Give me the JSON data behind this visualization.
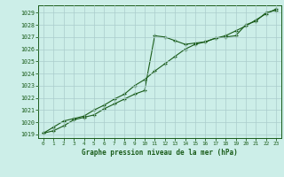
{
  "title": "Graphe pression niveau de la mer (hPa)",
  "xlim": [
    -0.5,
    23.5
  ],
  "ylim": [
    1018.7,
    1029.6
  ],
  "xticks": [
    0,
    1,
    2,
    3,
    4,
    5,
    6,
    7,
    8,
    9,
    10,
    11,
    12,
    13,
    14,
    15,
    16,
    17,
    18,
    19,
    20,
    21,
    22,
    23
  ],
  "yticks": [
    1019,
    1020,
    1021,
    1022,
    1023,
    1024,
    1025,
    1026,
    1027,
    1028,
    1029
  ],
  "background_color": "#cceee8",
  "grid_color": "#aacccc",
  "line_color": "#1a5c1a",
  "series1_x": [
    0,
    1,
    2,
    3,
    4,
    5,
    6,
    7,
    8,
    9,
    10,
    11,
    12,
    13,
    14,
    15,
    16,
    17,
    18,
    19,
    20,
    21,
    22,
    23
  ],
  "series1_y": [
    1019.1,
    1019.3,
    1019.7,
    1020.2,
    1020.4,
    1020.6,
    1021.1,
    1021.5,
    1021.9,
    1022.3,
    1022.6,
    1027.1,
    1027.0,
    1026.7,
    1026.4,
    1026.5,
    1026.6,
    1026.9,
    1027.0,
    1027.1,
    1028.0,
    1028.3,
    1029.0,
    1029.2
  ],
  "series2_x": [
    0,
    1,
    2,
    3,
    4,
    5,
    6,
    7,
    8,
    9,
    10,
    11,
    12,
    13,
    14,
    15,
    16,
    17,
    18,
    19,
    20,
    21,
    22,
    23
  ],
  "series2_y": [
    1019.1,
    1019.6,
    1020.1,
    1020.3,
    1020.5,
    1021.0,
    1021.4,
    1021.9,
    1022.3,
    1023.0,
    1023.5,
    1024.2,
    1024.8,
    1025.4,
    1026.0,
    1026.4,
    1026.6,
    1026.9,
    1027.1,
    1027.5,
    1027.9,
    1028.4,
    1028.9,
    1029.3
  ]
}
